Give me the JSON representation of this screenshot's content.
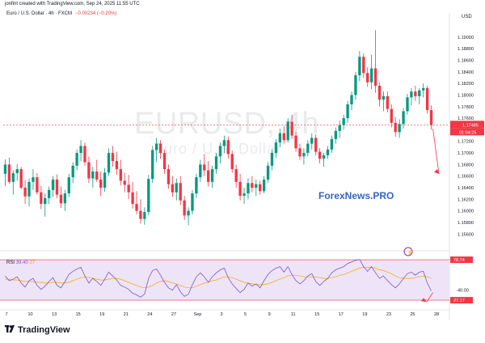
{
  "header": {
    "caption": "jonfint created with TradingView.com, Sep 24, 2025 11:55 UTC",
    "symbol_line": "Euro / U.S. Dollar · 4h · FXCM",
    "change": "−0.00234 (−0.20%)",
    "currency": "USD"
  },
  "watermark": {
    "symbol": "EURUSD, 4h",
    "description": "Euro / U.S. Dollar"
  },
  "brand": {
    "text": "ForexNews.PRO",
    "color": "#3566c2"
  },
  "footer": {
    "logo_text": "TradingView"
  },
  "colors": {
    "up": "#089981",
    "down": "#f23645",
    "rsi": "#7e57c2",
    "rsi_ma": "#f7a600",
    "rsi_band": "#ede4f7",
    "arrow": "#f23645"
  },
  "chart_data": {
    "type": "candlestick",
    "title": "Euro / U.S. Dollar · 4h · FXCM",
    "ylabel": "USD",
    "ylim": [
      1.1545,
      1.1925
    ],
    "y_ticks": [
      "1.19000",
      "1.18800",
      "1.18600",
      "1.18400",
      "1.18200",
      "1.18000",
      "1.17800",
      "1.17600",
      "1.17400",
      "1.17200",
      "1.17000",
      "1.16800",
      "1.16600",
      "1.16400",
      "1.16200",
      "1.16000",
      "1.15800",
      "1.15600"
    ],
    "x_ticks": [
      "7",
      "10",
      "13",
      "15",
      "19",
      "21",
      "24",
      "27",
      "Sep",
      "3",
      "5",
      "9",
      "11",
      "15",
      "17",
      "19",
      "23",
      "25",
      "28"
    ],
    "last_price": "1.17485",
    "countdown": "01:04:25",
    "candles": [
      {
        "o": 1.1664,
        "h": 1.1689,
        "l": 1.1643,
        "c": 1.168
      },
      {
        "o": 1.168,
        "h": 1.1692,
        "l": 1.1647,
        "c": 1.165
      },
      {
        "o": 1.165,
        "h": 1.167,
        "l": 1.1628,
        "c": 1.1665
      },
      {
        "o": 1.1665,
        "h": 1.1681,
        "l": 1.1652,
        "c": 1.1672
      },
      {
        "o": 1.1672,
        "h": 1.1676,
        "l": 1.1637,
        "c": 1.164
      },
      {
        "o": 1.164,
        "h": 1.1653,
        "l": 1.1612,
        "c": 1.1625
      },
      {
        "o": 1.1625,
        "h": 1.1656,
        "l": 1.1608,
        "c": 1.165
      },
      {
        "o": 1.165,
        "h": 1.1672,
        "l": 1.1636,
        "c": 1.1658
      },
      {
        "o": 1.1658,
        "h": 1.1665,
        "l": 1.1628,
        "c": 1.1632
      },
      {
        "o": 1.1632,
        "h": 1.1643,
        "l": 1.1603,
        "c": 1.1612
      },
      {
        "o": 1.1612,
        "h": 1.163,
        "l": 1.159,
        "c": 1.1622
      },
      {
        "o": 1.1622,
        "h": 1.1642,
        "l": 1.1612,
        "c": 1.1636
      },
      {
        "o": 1.1636,
        "h": 1.166,
        "l": 1.1624,
        "c": 1.1654
      },
      {
        "o": 1.1654,
        "h": 1.1663,
        "l": 1.1622,
        "c": 1.1628
      },
      {
        "o": 1.1628,
        "h": 1.1642,
        "l": 1.1605,
        "c": 1.1613
      },
      {
        "o": 1.1613,
        "h": 1.1636,
        "l": 1.16,
        "c": 1.163
      },
      {
        "o": 1.163,
        "h": 1.1664,
        "l": 1.1624,
        "c": 1.1658
      },
      {
        "o": 1.1658,
        "h": 1.1684,
        "l": 1.1648,
        "c": 1.1678
      },
      {
        "o": 1.1678,
        "h": 1.1706,
        "l": 1.167,
        "c": 1.17
      },
      {
        "o": 1.17,
        "h": 1.1722,
        "l": 1.1686,
        "c": 1.1712
      },
      {
        "o": 1.1712,
        "h": 1.1718,
        "l": 1.1678,
        "c": 1.1684
      },
      {
        "o": 1.1684,
        "h": 1.1694,
        "l": 1.1648,
        "c": 1.1656
      },
      {
        "o": 1.1656,
        "h": 1.1676,
        "l": 1.164,
        "c": 1.1668
      },
      {
        "o": 1.1668,
        "h": 1.1688,
        "l": 1.165,
        "c": 1.1654
      },
      {
        "o": 1.1654,
        "h": 1.1668,
        "l": 1.1626,
        "c": 1.164
      },
      {
        "o": 1.164,
        "h": 1.1674,
        "l": 1.1633,
        "c": 1.1666
      },
      {
        "o": 1.1666,
        "h": 1.1708,
        "l": 1.166,
        "c": 1.17
      },
      {
        "o": 1.17,
        "h": 1.1712,
        "l": 1.1676,
        "c": 1.1686
      },
      {
        "o": 1.1686,
        "h": 1.1702,
        "l": 1.1662,
        "c": 1.1672
      },
      {
        "o": 1.1672,
        "h": 1.1688,
        "l": 1.1644,
        "c": 1.1652
      },
      {
        "o": 1.1652,
        "h": 1.1666,
        "l": 1.1632,
        "c": 1.1645
      },
      {
        "o": 1.1645,
        "h": 1.1662,
        "l": 1.162,
        "c": 1.1632
      },
      {
        "o": 1.1632,
        "h": 1.165,
        "l": 1.1604,
        "c": 1.1612
      },
      {
        "o": 1.1612,
        "h": 1.1634,
        "l": 1.1594,
        "c": 1.16
      },
      {
        "o": 1.16,
        "h": 1.162,
        "l": 1.1578,
        "c": 1.1586
      },
      {
        "o": 1.1586,
        "h": 1.1606,
        "l": 1.1576,
        "c": 1.1598
      },
      {
        "o": 1.1598,
        "h": 1.1662,
        "l": 1.1592,
        "c": 1.1655
      },
      {
        "o": 1.1655,
        "h": 1.1712,
        "l": 1.1648,
        "c": 1.1705
      },
      {
        "o": 1.1705,
        "h": 1.1726,
        "l": 1.1684,
        "c": 1.1716
      },
      {
        "o": 1.1716,
        "h": 1.1722,
        "l": 1.169,
        "c": 1.17
      },
      {
        "o": 1.17,
        "h": 1.1706,
        "l": 1.1664,
        "c": 1.1672
      },
      {
        "o": 1.1672,
        "h": 1.168,
        "l": 1.1638,
        "c": 1.1646
      },
      {
        "o": 1.1646,
        "h": 1.166,
        "l": 1.1624,
        "c": 1.1632
      },
      {
        "o": 1.1632,
        "h": 1.1656,
        "l": 1.1618,
        "c": 1.1648
      },
      {
        "o": 1.1648,
        "h": 1.166,
        "l": 1.161,
        "c": 1.1618
      },
      {
        "o": 1.1618,
        "h": 1.1626,
        "l": 1.1584,
        "c": 1.1592
      },
      {
        "o": 1.1592,
        "h": 1.1606,
        "l": 1.1575,
        "c": 1.16
      },
      {
        "o": 1.16,
        "h": 1.1636,
        "l": 1.1594,
        "c": 1.163
      },
      {
        "o": 1.163,
        "h": 1.1664,
        "l": 1.1622,
        "c": 1.1658
      },
      {
        "o": 1.1658,
        "h": 1.1688,
        "l": 1.165,
        "c": 1.168
      },
      {
        "o": 1.168,
        "h": 1.1698,
        "l": 1.166,
        "c": 1.167
      },
      {
        "o": 1.167,
        "h": 1.1686,
        "l": 1.1642,
        "c": 1.165
      },
      {
        "o": 1.165,
        "h": 1.1678,
        "l": 1.164,
        "c": 1.1672
      },
      {
        "o": 1.1672,
        "h": 1.17,
        "l": 1.1664,
        "c": 1.1694
      },
      {
        "o": 1.1694,
        "h": 1.1718,
        "l": 1.1682,
        "c": 1.1712
      },
      {
        "o": 1.1712,
        "h": 1.173,
        "l": 1.17,
        "c": 1.1722
      },
      {
        "o": 1.1722,
        "h": 1.1728,
        "l": 1.169,
        "c": 1.1698
      },
      {
        "o": 1.1698,
        "h": 1.1704,
        "l": 1.1666,
        "c": 1.1672
      },
      {
        "o": 1.1672,
        "h": 1.168,
        "l": 1.164,
        "c": 1.165
      },
      {
        "o": 1.165,
        "h": 1.1664,
        "l": 1.1618,
        "c": 1.1626
      },
      {
        "o": 1.1626,
        "h": 1.164,
        "l": 1.1612,
        "c": 1.163
      },
      {
        "o": 1.163,
        "h": 1.1656,
        "l": 1.162,
        "c": 1.1648
      },
      {
        "o": 1.1648,
        "h": 1.166,
        "l": 1.1632,
        "c": 1.164
      },
      {
        "o": 1.164,
        "h": 1.1654,
        "l": 1.1626,
        "c": 1.1646
      },
      {
        "o": 1.1646,
        "h": 1.1652,
        "l": 1.1628,
        "c": 1.1634
      },
      {
        "o": 1.1634,
        "h": 1.166,
        "l": 1.163,
        "c": 1.1654
      },
      {
        "o": 1.1654,
        "h": 1.1684,
        "l": 1.1648,
        "c": 1.1678
      },
      {
        "o": 1.1678,
        "h": 1.1706,
        "l": 1.167,
        "c": 1.17
      },
      {
        "o": 1.17,
        "h": 1.1724,
        "l": 1.1692,
        "c": 1.1718
      },
      {
        "o": 1.1718,
        "h": 1.1742,
        "l": 1.171,
        "c": 1.1734
      },
      {
        "o": 1.1734,
        "h": 1.1746,
        "l": 1.1716,
        "c": 1.1722
      },
      {
        "o": 1.1722,
        "h": 1.176,
        "l": 1.1718,
        "c": 1.1754
      },
      {
        "o": 1.1754,
        "h": 1.1766,
        "l": 1.1724,
        "c": 1.173
      },
      {
        "o": 1.173,
        "h": 1.1736,
        "l": 1.1702,
        "c": 1.1708
      },
      {
        "o": 1.1708,
        "h": 1.1716,
        "l": 1.1688,
        "c": 1.1694
      },
      {
        "o": 1.1694,
        "h": 1.1708,
        "l": 1.168,
        "c": 1.17
      },
      {
        "o": 1.17,
        "h": 1.1722,
        "l": 1.1694,
        "c": 1.1716
      },
      {
        "o": 1.1716,
        "h": 1.1734,
        "l": 1.1706,
        "c": 1.1726
      },
      {
        "o": 1.1726,
        "h": 1.1732,
        "l": 1.1696,
        "c": 1.1702
      },
      {
        "o": 1.1702,
        "h": 1.1708,
        "l": 1.1682,
        "c": 1.169
      },
      {
        "o": 1.169,
        "h": 1.17,
        "l": 1.1676,
        "c": 1.1696
      },
      {
        "o": 1.1696,
        "h": 1.1712,
        "l": 1.169,
        "c": 1.1706
      },
      {
        "o": 1.1706,
        "h": 1.173,
        "l": 1.17,
        "c": 1.1724
      },
      {
        "o": 1.1724,
        "h": 1.1744,
        "l": 1.1716,
        "c": 1.1738
      },
      {
        "o": 1.1738,
        "h": 1.1756,
        "l": 1.1726,
        "c": 1.1748
      },
      {
        "o": 1.1748,
        "h": 1.1766,
        "l": 1.174,
        "c": 1.176
      },
      {
        "o": 1.176,
        "h": 1.179,
        "l": 1.1752,
        "c": 1.1784
      },
      {
        "o": 1.1784,
        "h": 1.1806,
        "l": 1.1774,
        "c": 1.18
      },
      {
        "o": 1.18,
        "h": 1.184,
        "l": 1.1792,
        "c": 1.1834
      },
      {
        "o": 1.1834,
        "h": 1.1876,
        "l": 1.1824,
        "c": 1.1866
      },
      {
        "o": 1.1866,
        "h": 1.1872,
        "l": 1.183,
        "c": 1.1838
      },
      {
        "o": 1.1838,
        "h": 1.1848,
        "l": 1.1814,
        "c": 1.1822
      },
      {
        "o": 1.1822,
        "h": 1.187,
        "l": 1.181,
        "c": 1.1846
      },
      {
        "o": 1.1846,
        "h": 1.1912,
        "l": 1.1804,
        "c": 1.1816
      },
      {
        "o": 1.1816,
        "h": 1.1822,
        "l": 1.178,
        "c": 1.1792
      },
      {
        "o": 1.1792,
        "h": 1.1806,
        "l": 1.1772,
        "c": 1.1798
      },
      {
        "o": 1.1798,
        "h": 1.1806,
        "l": 1.177,
        "c": 1.1776
      },
      {
        "o": 1.1776,
        "h": 1.1784,
        "l": 1.1744,
        "c": 1.1752
      },
      {
        "o": 1.1752,
        "h": 1.1762,
        "l": 1.1728,
        "c": 1.1736
      },
      {
        "o": 1.1736,
        "h": 1.1758,
        "l": 1.1726,
        "c": 1.175
      },
      {
        "o": 1.175,
        "h": 1.1778,
        "l": 1.1742,
        "c": 1.1772
      },
      {
        "o": 1.1772,
        "h": 1.1802,
        "l": 1.1766,
        "c": 1.1796
      },
      {
        "o": 1.1796,
        "h": 1.1812,
        "l": 1.1782,
        "c": 1.1806
      },
      {
        "o": 1.1806,
        "h": 1.1816,
        "l": 1.179,
        "c": 1.1798
      },
      {
        "o": 1.1798,
        "h": 1.1812,
        "l": 1.1784,
        "c": 1.1808
      },
      {
        "o": 1.1808,
        "h": 1.182,
        "l": 1.1796,
        "c": 1.1812
      },
      {
        "o": 1.1812,
        "h": 1.1816,
        "l": 1.1768,
        "c": 1.1774
      },
      {
        "o": 1.1774,
        "h": 1.1782,
        "l": 1.174,
        "c": 1.1748
      }
    ],
    "rsi": {
      "label": "RSI",
      "value": "39.40",
      "secondary_value": "27",
      "scale_ticks": [
        "40.00"
      ],
      "upper_level": "78.74",
      "lower_level": "27.17",
      "ylim": [
        18,
        84
      ],
      "values": [
        58,
        52,
        54,
        57,
        49,
        44,
        52,
        55,
        46,
        41,
        45,
        51,
        56,
        46,
        43,
        51,
        60,
        64,
        67,
        69,
        58,
        49,
        55,
        51,
        46,
        54,
        63,
        58,
        53,
        46,
        44,
        41,
        36,
        34,
        31,
        35,
        55,
        65,
        67,
        59,
        50,
        43,
        40,
        47,
        38,
        32,
        35,
        47,
        57,
        62,
        57,
        50,
        57,
        62,
        66,
        68,
        56,
        48,
        42,
        37,
        41,
        49,
        45,
        48,
        43,
        52,
        60,
        65,
        68,
        70,
        63,
        70,
        60,
        52,
        48,
        52,
        58,
        61,
        51,
        46,
        51,
        55,
        62,
        66,
        68,
        70,
        74,
        76,
        78,
        79,
        70,
        64,
        70,
        62,
        55,
        58,
        52,
        47,
        43,
        48,
        55,
        61,
        63,
        59,
        63,
        64,
        49,
        39
      ],
      "ma": [
        54,
        54,
        53,
        53,
        52,
        51,
        51,
        51,
        50,
        50,
        49,
        49,
        50,
        50,
        49,
        49,
        50,
        52,
        54,
        56,
        57,
        56,
        55,
        54,
        53,
        53,
        54,
        55,
        55,
        54,
        52,
        50,
        48,
        46,
        44,
        43,
        44,
        46,
        49,
        51,
        52,
        51,
        49,
        48,
        46,
        44,
        43,
        43,
        45,
        47,
        49,
        50,
        52,
        53,
        55,
        57,
        57,
        56,
        54,
        52,
        50,
        49,
        48,
        47,
        47,
        47,
        48,
        50,
        52,
        54,
        56,
        58,
        59,
        59,
        58,
        57,
        57,
        57,
        57,
        56,
        55,
        55,
        56,
        57,
        59,
        60,
        62,
        64,
        66,
        68,
        69,
        69,
        69,
        68,
        66,
        65,
        63,
        61,
        58,
        56,
        55,
        55,
        55,
        56,
        57,
        58,
        57,
        55
      ]
    }
  }
}
